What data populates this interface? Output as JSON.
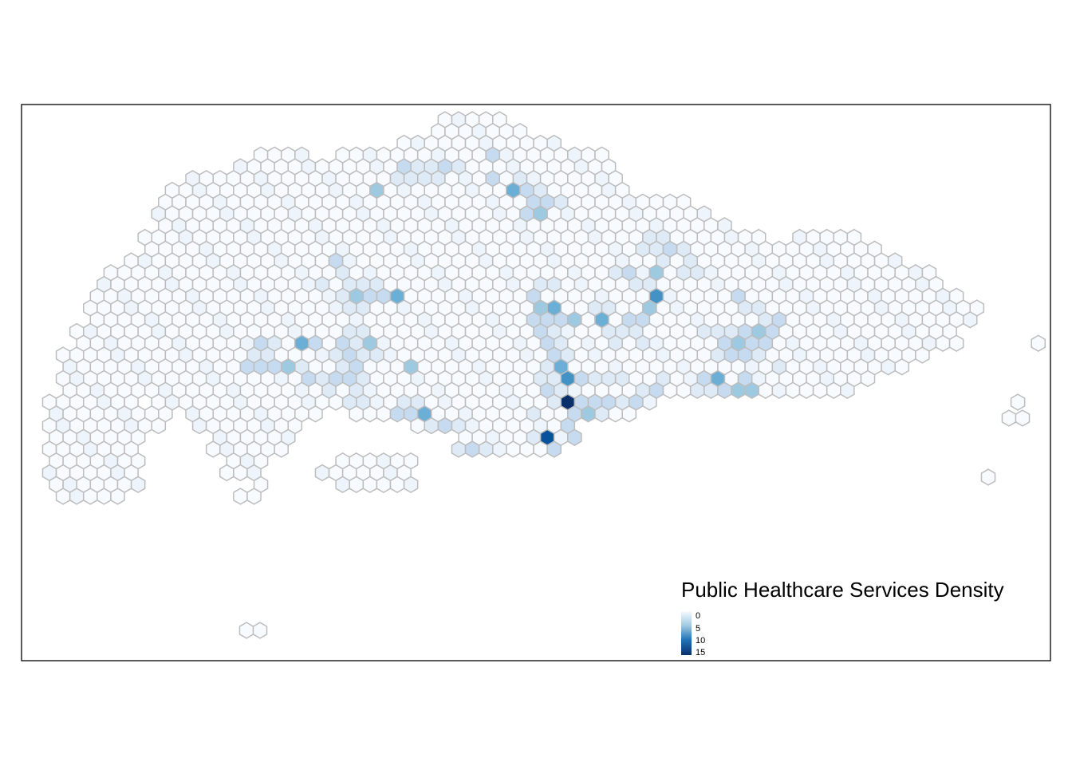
{
  "map": {
    "title": "Public Healthcare Services Density",
    "legend": {
      "title": "Public Healthcare Services Density",
      "ticks": [
        "0",
        "5",
        "10",
        "15"
      ],
      "color_low": "#f7fbff",
      "color_high": "#08306b"
    },
    "style": {
      "hex_stroke": "#bdbdbd",
      "frame_stroke": "#000000",
      "palette": [
        "#f7fbff",
        "#deebf7",
        "#c6dbef",
        "#9ecae1",
        "#6baed6",
        "#4292c6",
        "#2171b5",
        "#08519c",
        "#08306b"
      ]
    }
  }
}
